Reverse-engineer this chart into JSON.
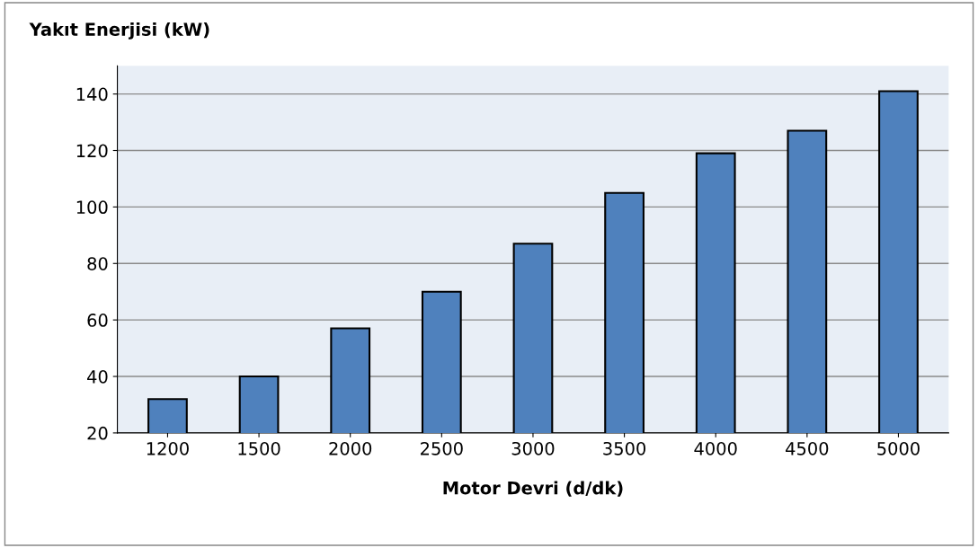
{
  "chart_data": {
    "type": "bar",
    "ylabel": "Yakıt Enerjisi (kW)",
    "xlabel": "Motor Devri (d/dk)",
    "categories": [
      "1200",
      "1500",
      "2000",
      "2500",
      "3000",
      "3500",
      "4000",
      "4500",
      "5000"
    ],
    "values": [
      32,
      40,
      57,
      70,
      87,
      105,
      119,
      127,
      141
    ],
    "color": "#4f81bd",
    "ylim": [
      20,
      150
    ],
    "yticks": [
      20,
      40,
      60,
      80,
      100,
      120,
      140
    ],
    "grid": "y",
    "legend": false
  }
}
